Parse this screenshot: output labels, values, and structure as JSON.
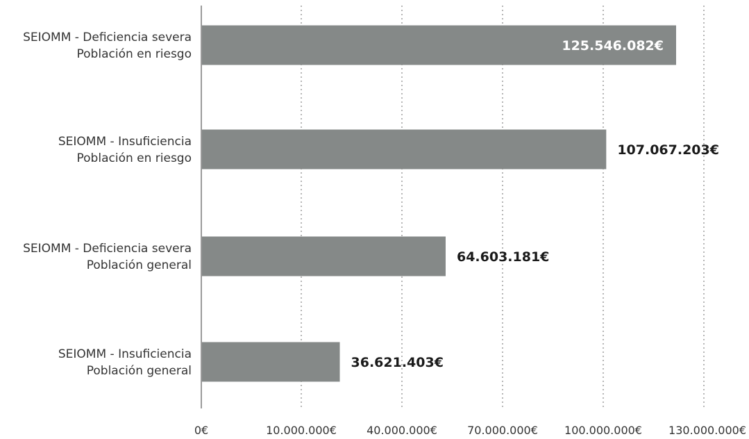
{
  "chart_data": {
    "type": "bar",
    "orientation": "horizontal",
    "categories": [
      [
        "SEIOMM - Deficiencia severa",
        "Población en riesgo"
      ],
      [
        "SEIOMM - Insuficiencia",
        "Población en riesgo"
      ],
      [
        "SEIOMM - Deficiencia severa",
        "Población general"
      ],
      [
        "SEIOMM - Insuficiencia",
        "Población general"
      ]
    ],
    "values": [
      125546082,
      107067203,
      64603181,
      36621403
    ],
    "value_labels": [
      "125.546.082€",
      "107.067.203€",
      "64.603.181€",
      "36.621.403€"
    ],
    "x_ticks": [
      "0€",
      "10.000.000€",
      "40.000.000€",
      "70.000.000€",
      "100.000.000€",
      "130.000.000€"
    ],
    "grid": "vertical dotted",
    "colors": {
      "bar": "#858988",
      "label_inside": "#ffffff",
      "label_outside": "#1a1a1a",
      "axis": "#9a9a9a",
      "grid": "#b5b5b5"
    }
  }
}
